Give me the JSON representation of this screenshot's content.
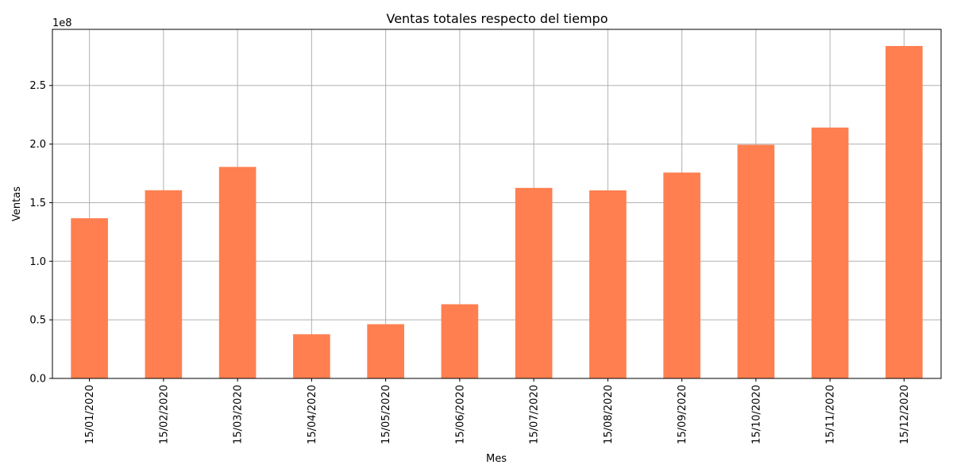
{
  "chart_data": {
    "type": "bar",
    "title": "Ventas totales respecto del tiempo",
    "xlabel": "Mes",
    "ylabel": "Ventas",
    "y_offset_label": "1e8",
    "categories": [
      "15/01/2020",
      "15/02/2020",
      "15/03/2020",
      "15/04/2020",
      "15/05/2020",
      "15/06/2020",
      "15/07/2020",
      "15/08/2020",
      "15/09/2020",
      "15/10/2020",
      "15/11/2020",
      "15/12/2020"
    ],
    "values": [
      136700000,
      160600000,
      180500000,
      37700000,
      46300000,
      63300000,
      162600000,
      160500000,
      175700000,
      199400000,
      214100000,
      283700000
    ],
    "ylim": [
      0,
      297900000
    ],
    "yticks": [
      0,
      50000000,
      100000000,
      150000000,
      200000000,
      250000000
    ],
    "ytick_labels": [
      "0.0",
      "0.5",
      "1.0",
      "1.5",
      "2.0",
      "2.5"
    ],
    "bar_color": "#ff7f50",
    "grid": true,
    "grid_color": "#b0b0b0"
  }
}
